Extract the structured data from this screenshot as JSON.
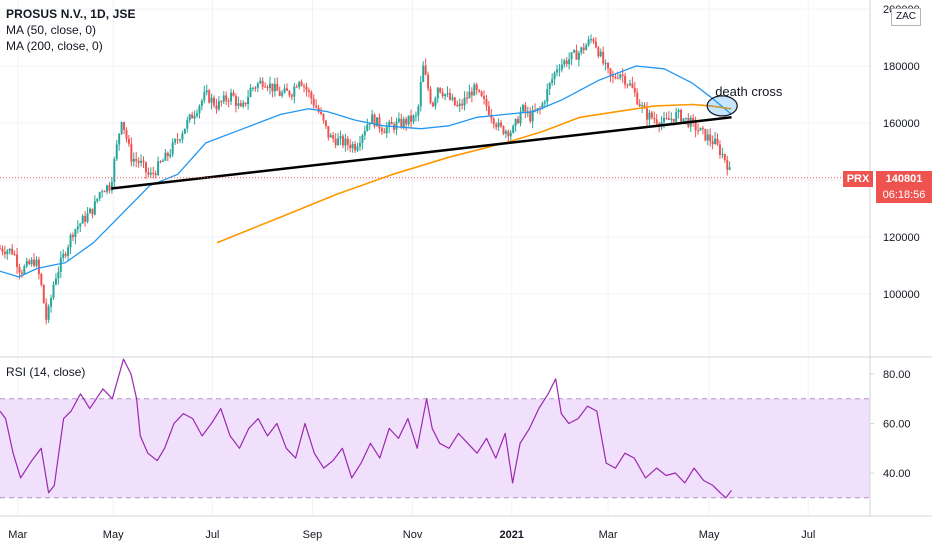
{
  "header": {
    "title": "PROSUS N.V., 1D, JSE",
    "ma50_label": "MA (50, close, 0)",
    "ma200_label": "MA (200, close, 0)",
    "scale_label": "ZAC"
  },
  "price_tag": {
    "symbol": "PRX",
    "last_price": "140801",
    "countdown": "06:18:56",
    "color": "#ef5350"
  },
  "annotation": {
    "text": "death cross"
  },
  "rsi_header": {
    "label": "RSI (14, close)"
  },
  "colors": {
    "up": "#26a69a",
    "down": "#ef5350",
    "ma50": "#2196f3",
    "ma200": "#ff9800",
    "rsi": "#9c27b0",
    "rsi_band": "#f0e0fb",
    "trendline": "#000000"
  },
  "chart_data": [
    {
      "type": "candlestick",
      "title": "PROSUS N.V., 1D, JSE",
      "y_unit": "ZAC",
      "ylim": [
        80000,
        205000
      ],
      "yticks": [
        "100000",
        "120000",
        "140000",
        "160000",
        "180000",
        "200000"
      ],
      "x_ticks": [
        "Mar",
        "May",
        "Jul",
        "Sep",
        "Nov",
        "2021",
        "Mar",
        "May",
        "Jul"
      ],
      "x_tick_days": [
        19,
        121,
        227,
        334,
        441,
        547,
        650,
        758,
        864
      ],
      "x_range_days": [
        0,
        930
      ],
      "price_path": {
        "days": [
          0,
          14,
          22,
          30,
          38,
          44,
          50,
          58,
          64,
          78,
          100,
          108,
          118,
          130,
          140,
          150,
          160,
          170,
          180,
          200,
          220,
          232,
          248,
          258,
          268,
          282,
          300,
          312,
          320,
          334,
          342,
          352,
          368,
          380,
          396,
          410,
          430,
          446,
          452,
          462,
          468,
          476,
          490,
          506,
          520,
          534,
          548,
          558,
          566,
          578,
          586,
          596,
          606,
          620,
          634,
          646,
          654,
          662,
          674,
          690,
          710,
          724,
          738,
          752,
          764,
          776,
          782
        ],
        "close": [
          116000,
          115000,
          108000,
          110000,
          112000,
          103000,
          90000,
          105000,
          110000,
          122000,
          130000,
          137000,
          138000,
          162000,
          148000,
          146000,
          141000,
          145000,
          149000,
          160000,
          170000,
          166000,
          170000,
          164000,
          172000,
          175000,
          170000,
          171000,
          176000,
          168000,
          163000,
          155000,
          153000,
          152000,
          162000,
          158000,
          160000,
          162000,
          180000,
          166000,
          173000,
          170000,
          165000,
          172000,
          166000,
          158000,
          157000,
          165000,
          162000,
          165000,
          172000,
          180000,
          182000,
          185000,
          190000,
          180000,
          175000,
          178000,
          173000,
          163000,
          160000,
          163000,
          160000,
          156000,
          153000,
          147000,
          140801
        ]
      },
      "ma50": {
        "days": [
          0,
          20,
          40,
          70,
          100,
          130,
          160,
          190,
          220,
          260,
          300,
          330,
          350,
          380,
          410,
          450,
          480,
          510,
          540,
          570,
          600,
          640,
          680,
          710,
          740,
          760,
          782
        ],
        "values": [
          108000,
          106000,
          109000,
          111000,
          118000,
          128000,
          138000,
          142000,
          153000,
          158000,
          163000,
          165000,
          164000,
          161000,
          159000,
          158000,
          159000,
          162000,
          163000,
          164000,
          168000,
          175000,
          180000,
          179000,
          174000,
          169000,
          163000
        ]
      },
      "ma200": {
        "days": [
          232,
          300,
          360,
          420,
          480,
          540,
          580,
          620,
          660,
          700,
          740,
          760,
          782
        ],
        "values": [
          118000,
          127000,
          135000,
          142000,
          148000,
          153000,
          157000,
          162000,
          164000,
          166000,
          166500,
          166000,
          165000
        ]
      },
      "trendline": {
        "from": [
          119,
          137000
        ],
        "to": [
          782,
          162000
        ]
      },
      "annotation": {
        "label": "death cross",
        "day": 772,
        "price": 166000
      }
    },
    {
      "type": "line",
      "title": "RSI (14, close)",
      "ylim": [
        25,
        90
      ],
      "yticks": [
        "40.00",
        "60.00",
        "80.00"
      ],
      "band": [
        30,
        70
      ],
      "series": [
        {
          "days": [
            0,
            6,
            14,
            22,
            34,
            44,
            52,
            58,
            68,
            76,
            86,
            96,
            110,
            120,
            132,
            140,
            146,
            150,
            158,
            168,
            176,
            186,
            196,
            206,
            216,
            226,
            236,
            246,
            256,
            266,
            276,
            286,
            296,
            306,
            316,
            326,
            336,
            346,
            356,
            366,
            376,
            386,
            396,
            406,
            416,
            426,
            436,
            446,
            456,
            462,
            470,
            480,
            490,
            500,
            510,
            520,
            530,
            540,
            548,
            556,
            566,
            576,
            586,
            594,
            600,
            608,
            618,
            628,
            638,
            648,
            658,
            668,
            678,
            690,
            702,
            712,
            722,
            732,
            742,
            752,
            762,
            770,
            776,
            782
          ],
          "values": [
            65,
            62,
            48,
            38,
            45,
            50,
            32,
            35,
            62,
            65,
            72,
            66,
            74,
            70,
            86,
            80,
            70,
            55,
            48,
            45,
            50,
            60,
            64,
            62,
            55,
            60,
            66,
            55,
            50,
            58,
            62,
            55,
            60,
            50,
            46,
            60,
            48,
            42,
            45,
            50,
            38,
            44,
            52,
            46,
            58,
            54,
            62,
            50,
            70,
            58,
            52,
            50,
            56,
            52,
            48,
            54,
            46,
            56,
            36,
            52,
            58,
            66,
            72,
            78,
            64,
            60,
            62,
            67,
            65,
            44,
            42,
            48,
            46,
            38,
            42,
            39,
            40,
            36,
            42,
            37,
            35,
            32,
            30,
            33
          ]
        }
      ]
    }
  ]
}
